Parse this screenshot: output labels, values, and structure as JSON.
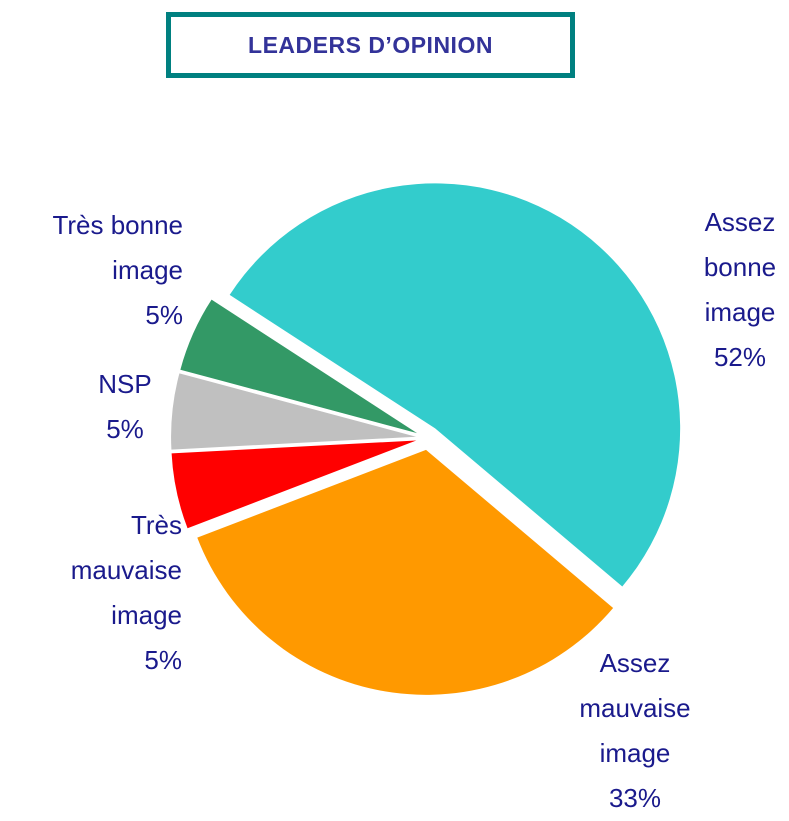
{
  "chart_data": {
    "type": "pie",
    "title": "LEADERS D’OPINION",
    "categories": [
      "Assez bonne image",
      "Assez mauvaise image",
      "Très mauvaise image",
      "NSP",
      "Très bonne image"
    ],
    "values": [
      52,
      33,
      5,
      5,
      5
    ],
    "value_labels": [
      "52%",
      "33%",
      "5%",
      "5%",
      "5%"
    ],
    "colors": [
      "#33CCCC",
      "#FF9900",
      "#FF0000",
      "#C0C0C0",
      "#339966"
    ]
  }
}
